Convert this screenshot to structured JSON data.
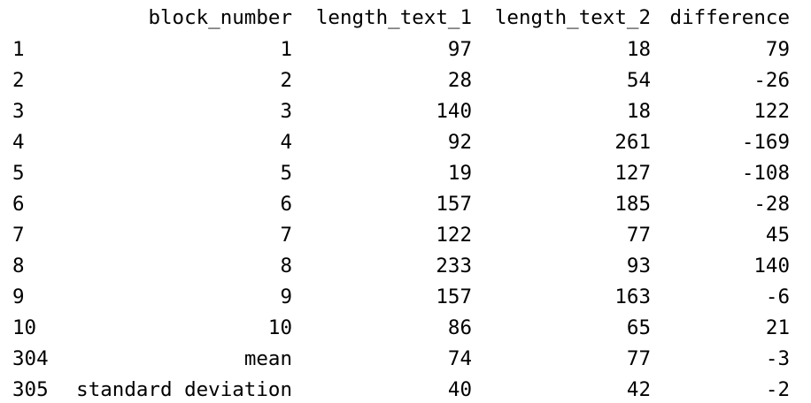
{
  "table": {
    "headers": [
      "",
      "block_number",
      "length_text_1",
      "length_text_2",
      "difference"
    ],
    "rows": [
      {
        "index": "1",
        "block_number": "1",
        "length_text_1": "97",
        "length_text_2": "18",
        "difference": "79"
      },
      {
        "index": "2",
        "block_number": "2",
        "length_text_1": "28",
        "length_text_2": "54",
        "difference": "-26"
      },
      {
        "index": "3",
        "block_number": "3",
        "length_text_1": "140",
        "length_text_2": "18",
        "difference": "122"
      },
      {
        "index": "4",
        "block_number": "4",
        "length_text_1": "92",
        "length_text_2": "261",
        "difference": "-169"
      },
      {
        "index": "5",
        "block_number": "5",
        "length_text_1": "19",
        "length_text_2": "127",
        "difference": "-108"
      },
      {
        "index": "6",
        "block_number": "6",
        "length_text_1": "157",
        "length_text_2": "185",
        "difference": "-28"
      },
      {
        "index": "7",
        "block_number": "7",
        "length_text_1": "122",
        "length_text_2": "77",
        "difference": "45"
      },
      {
        "index": "8",
        "block_number": "8",
        "length_text_1": "233",
        "length_text_2": "93",
        "difference": "140"
      },
      {
        "index": "9",
        "block_number": "9",
        "length_text_1": "157",
        "length_text_2": "163",
        "difference": "-6"
      },
      {
        "index": "10",
        "block_number": "10",
        "length_text_1": "86",
        "length_text_2": "65",
        "difference": "21"
      },
      {
        "index": "304",
        "block_number": "mean",
        "length_text_1": "74",
        "length_text_2": "77",
        "difference": "-3"
      },
      {
        "index": "305",
        "block_number": "standard deviation",
        "length_text_1": "40",
        "length_text_2": "42",
        "difference": "-2"
      }
    ]
  }
}
